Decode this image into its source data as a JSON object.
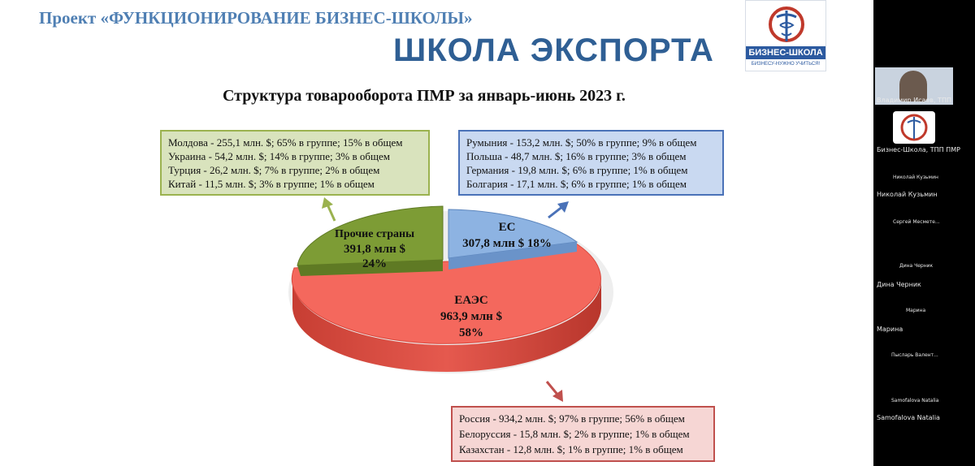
{
  "slide": {
    "project_title": "Проект «ФУНКЦИОНИРОВАНИЕ БИЗНЕС-ШКОЛЫ»",
    "school_title": "ШКОЛА ЭКСПОРТА",
    "logo": {
      "name": "БИЗНЕС-ШКОЛА",
      "tagline": "БИЗНЕСУ-НУЖНО УЧИТЬСЯ!"
    },
    "chart_title": "Структура товарооборота ПМР за январь-июнь 2023 г."
  },
  "chart_data": {
    "type": "pie",
    "title": "Структура товарооборота ПМР за январь-июнь 2023 г.",
    "slices": [
      {
        "name": "ЕАЭС",
        "value_label": "963,9 млн $",
        "percent_label": "58%",
        "value": 963.9,
        "percent": 58,
        "color": "#f4685d"
      },
      {
        "name": "Прочие страны",
        "value_label": "391,8 млн $",
        "percent_label": "24%",
        "value": 391.8,
        "percent": 24,
        "color": "#7d9c35"
      },
      {
        "name": "ЕС",
        "value_label": "307,8 млн $ 18%",
        "value": 307.8,
        "percent": 18,
        "color": "#8db3e2"
      }
    ],
    "annotations": {
      "other": [
        "Молдова - 255,1 млн. $; 65% в группе; 15% в общем",
        "Украина - 54,2 млн. $; 14% в группе; 3% в общем",
        "Турция - 26,2 млн. $; 7% в группе; 2% в общем",
        "Китай - 11,5 млн. $; 3% в группе; 1% в общем"
      ],
      "eu": [
        "Румыния - 153,2 млн. $; 50% в группе; 9% в общем",
        "Польша - 48,7 млн. $; 16% в группе; 3% в общем",
        "Германия - 19,8 млн. $; 6% в группе; 1% в общем",
        "Болгария - 17,1 млн. $; 6% в группе; 1% в общем"
      ],
      "eaeu": [
        "Россия - 934,2 млн. $; 97% в группе; 56% в общем",
        "Белоруссия - 15,8 млн. $; 2% в группе; 1% в общем",
        "Казахстан - 12,8 млн. $; 1% в группе; 1% в общем"
      ]
    }
  },
  "participants": [
    {
      "label": "Владимир Исаев, ТПП"
    },
    {
      "label": "Бизнес-Школа, ТПП ПМР"
    },
    {
      "label": "Николай Кузьмин",
      "caption": "Николай Кузьмин"
    },
    {
      "label": "Сергей Месмете..."
    },
    {
      "label": "Дина Черник",
      "caption": "Дина Черник"
    },
    {
      "label": "Марина",
      "caption": "Марина"
    },
    {
      "label": "Пысларь Валент..."
    },
    {
      "label": "Samofalova Natalia",
      "caption": "Samofalova Natalia"
    }
  ]
}
